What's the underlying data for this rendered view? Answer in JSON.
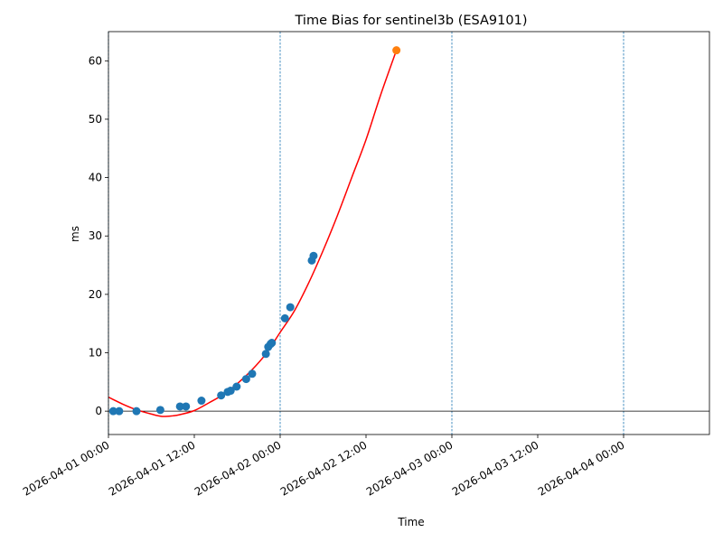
{
  "chart_data": {
    "type": "scatter",
    "title": "Time Bias for sentinel3b (ESA9101)",
    "xlabel": "Time",
    "ylabel": "ms",
    "x_unit": "datetime",
    "xlim": [
      "2026-04-01 00:00",
      "2026-04-04 12:00"
    ],
    "ylim": [
      -4,
      65
    ],
    "y_ticks": [
      0,
      10,
      20,
      30,
      40,
      50,
      60
    ],
    "x_ticks": [
      "2026-04-01 00:00",
      "2026-04-01 12:00",
      "2026-04-02 00:00",
      "2026-04-02 12:00",
      "2026-04-03 00:00",
      "2026-04-03 12:00",
      "2026-04-04 00:00"
    ],
    "day_boundaries": [
      "2026-04-01 00:00",
      "2026-04-02 00:00",
      "2026-04-03 00:00",
      "2026-04-04 00:00"
    ],
    "zero_line": true,
    "grid": false,
    "colors": {
      "observations": "#1f77b4",
      "prediction": "#ff7f0e",
      "fit": "#ff0000",
      "day_lines": "#1f77b4",
      "zero_line": "#000000"
    },
    "series": [
      {
        "kind": "scatter",
        "color": "#1f77b4",
        "points": [
          {
            "x": "2026-04-01 00:40",
            "y": 0.0
          },
          {
            "x": "2026-04-01 01:30",
            "y": 0.0
          },
          {
            "x": "2026-04-01 03:55",
            "y": 0.0
          },
          {
            "x": "2026-04-01 07:15",
            "y": 0.2
          },
          {
            "x": "2026-04-01 10:00",
            "y": 0.8
          },
          {
            "x": "2026-04-01 10:50",
            "y": 0.8
          },
          {
            "x": "2026-04-01 13:00",
            "y": 1.8
          },
          {
            "x": "2026-04-01 15:45",
            "y": 2.7
          },
          {
            "x": "2026-04-01 16:40",
            "y": 3.3
          },
          {
            "x": "2026-04-01 17:05",
            "y": 3.5
          },
          {
            "x": "2026-04-01 17:55",
            "y": 4.2
          },
          {
            "x": "2026-04-01 19:15",
            "y": 5.5
          },
          {
            "x": "2026-04-01 20:05",
            "y": 6.4
          },
          {
            "x": "2026-04-01 22:00",
            "y": 9.8
          },
          {
            "x": "2026-04-01 22:20",
            "y": 11.0
          },
          {
            "x": "2026-04-01 22:40",
            "y": 11.5
          },
          {
            "x": "2026-04-01 22:50",
            "y": 11.7
          },
          {
            "x": "2026-04-02 00:40",
            "y": 15.9
          },
          {
            "x": "2026-04-02 01:25",
            "y": 17.8
          },
          {
            "x": "2026-04-02 04:25",
            "y": 25.8
          },
          {
            "x": "2026-04-02 04:40",
            "y": 26.6
          }
        ]
      },
      {
        "kind": "scatter",
        "color": "#ff7f0e",
        "points": [
          {
            "x": "2026-04-02 16:15",
            "y": 61.8
          }
        ]
      },
      {
        "kind": "line",
        "color": "#ff0000",
        "points": [
          {
            "x": "2026-04-01 00:00",
            "y": 2.4
          },
          {
            "x": "2026-04-01 02:00",
            "y": 1.2
          },
          {
            "x": "2026-04-01 04:00",
            "y": 0.2
          },
          {
            "x": "2026-04-01 06:00",
            "y": -0.5
          },
          {
            "x": "2026-04-01 07:30",
            "y": -0.9
          },
          {
            "x": "2026-04-01 09:00",
            "y": -0.8
          },
          {
            "x": "2026-04-01 10:00",
            "y": -0.6
          },
          {
            "x": "2026-04-01 12:00",
            "y": 0.1
          },
          {
            "x": "2026-04-01 14:00",
            "y": 1.4
          },
          {
            "x": "2026-04-01 16:00",
            "y": 2.8
          },
          {
            "x": "2026-04-01 18:00",
            "y": 4.7
          },
          {
            "x": "2026-04-01 20:00",
            "y": 7.0
          },
          {
            "x": "2026-04-01 22:00",
            "y": 9.8
          },
          {
            "x": "2026-04-02 00:00",
            "y": 13.5
          },
          {
            "x": "2026-04-02 02:00",
            "y": 17.2
          },
          {
            "x": "2026-04-02 04:00",
            "y": 22.0
          },
          {
            "x": "2026-04-02 06:00",
            "y": 27.5
          },
          {
            "x": "2026-04-02 08:00",
            "y": 33.5
          },
          {
            "x": "2026-04-02 10:00",
            "y": 40.0
          },
          {
            "x": "2026-04-02 12:00",
            "y": 46.5
          },
          {
            "x": "2026-04-02 14:00",
            "y": 54.0
          },
          {
            "x": "2026-04-02 16:15",
            "y": 61.8
          }
        ]
      }
    ]
  }
}
